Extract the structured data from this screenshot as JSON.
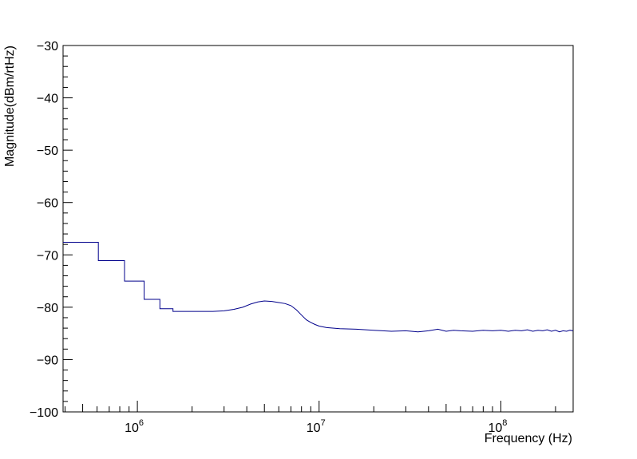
{
  "chart_data": {
    "type": "line",
    "title": "",
    "xlabel": "Frequency (Hz)",
    "ylabel": "Magnitude(dBm/rtHz)",
    "x_scale": "log",
    "xlim": [
      390000,
      250000000
    ],
    "ylim": [
      -100,
      -30
    ],
    "grid": false,
    "legend": "none",
    "y_ticks": [
      {
        "value": -100,
        "label": "−100"
      },
      {
        "value": -90,
        "label": "−90"
      },
      {
        "value": -80,
        "label": "−80"
      },
      {
        "value": -70,
        "label": "−70"
      },
      {
        "value": -60,
        "label": "−60"
      },
      {
        "value": -50,
        "label": "−50"
      },
      {
        "value": -40,
        "label": "−40"
      },
      {
        "value": -30,
        "label": "−30"
      }
    ],
    "x_ticks": [
      {
        "value": 1000000,
        "base": "10",
        "exp": "6"
      },
      {
        "value": 10000000,
        "base": "10",
        "exp": "7"
      },
      {
        "value": 100000000,
        "base": "10",
        "exp": "8"
      }
    ],
    "line_color": "#00008b",
    "series": [
      {
        "values_note": "",
        "points": [
          [
            390000,
            -67.6
          ],
          [
            610000,
            -67.6
          ],
          [
            610000,
            -71.1
          ],
          [
            850000,
            -71.1
          ],
          [
            850000,
            -75.0
          ],
          [
            1090000,
            -75.0
          ],
          [
            1090000,
            -78.5
          ],
          [
            1330000,
            -78.5
          ],
          [
            1330000,
            -80.3
          ],
          [
            1570000,
            -80.3
          ],
          [
            1570000,
            -80.8
          ],
          [
            2000000,
            -80.8
          ],
          [
            2600000,
            -80.8
          ],
          [
            3000000,
            -80.7
          ],
          [
            3400000,
            -80.4
          ],
          [
            3800000,
            -80.0
          ],
          [
            4200000,
            -79.4
          ],
          [
            4600000,
            -79.0
          ],
          [
            5000000,
            -78.8
          ],
          [
            5500000,
            -78.9
          ],
          [
            6000000,
            -79.1
          ],
          [
            6500000,
            -79.3
          ],
          [
            7000000,
            -79.7
          ],
          [
            7500000,
            -80.5
          ],
          [
            8000000,
            -81.5
          ],
          [
            8500000,
            -82.4
          ],
          [
            9000000,
            -82.9
          ],
          [
            9500000,
            -83.3
          ],
          [
            10000000,
            -83.6
          ],
          [
            11000000,
            -83.9
          ],
          [
            13000000,
            -84.1
          ],
          [
            16000000,
            -84.2
          ],
          [
            20000000,
            -84.4
          ],
          [
            25000000,
            -84.6
          ],
          [
            30000000,
            -84.5
          ],
          [
            35000000,
            -84.7
          ],
          [
            40000000,
            -84.5
          ],
          [
            45000000,
            -84.2
          ],
          [
            50000000,
            -84.6
          ],
          [
            55000000,
            -84.4
          ],
          [
            60000000,
            -84.5
          ],
          [
            70000000,
            -84.6
          ],
          [
            80000000,
            -84.4
          ],
          [
            90000000,
            -84.5
          ],
          [
            100000000,
            -84.4
          ],
          [
            110000000,
            -84.6
          ],
          [
            120000000,
            -84.4
          ],
          [
            130000000,
            -84.5
          ],
          [
            140000000,
            -84.3
          ],
          [
            150000000,
            -84.6
          ],
          [
            160000000,
            -84.4
          ],
          [
            170000000,
            -84.5
          ],
          [
            180000000,
            -84.3
          ],
          [
            190000000,
            -84.6
          ],
          [
            200000000,
            -84.4
          ],
          [
            210000000,
            -84.7
          ],
          [
            220000000,
            -84.5
          ],
          [
            230000000,
            -84.6
          ],
          [
            240000000,
            -84.4
          ],
          [
            250000000,
            -84.5
          ]
        ]
      }
    ]
  }
}
